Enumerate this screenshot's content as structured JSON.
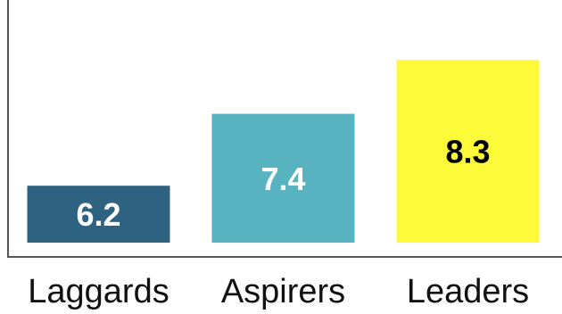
{
  "chart_data": {
    "type": "bar",
    "categories": [
      "Laggards",
      "Aspirers",
      "Leaders"
    ],
    "values": [
      6.2,
      7.4,
      8.3
    ],
    "value_labels": [
      "6.2",
      "7.4",
      "8.3"
    ],
    "bar_colors": [
      "#2d6280",
      "#57b3c0",
      "#fdfa3a"
    ],
    "label_colors": [
      "#ffffff",
      "#ffffff",
      "#000000"
    ],
    "title": "",
    "xlabel": "",
    "ylabel": "",
    "ylim": [
      5.25,
      9.3
    ],
    "grid": false,
    "legend": "none"
  }
}
